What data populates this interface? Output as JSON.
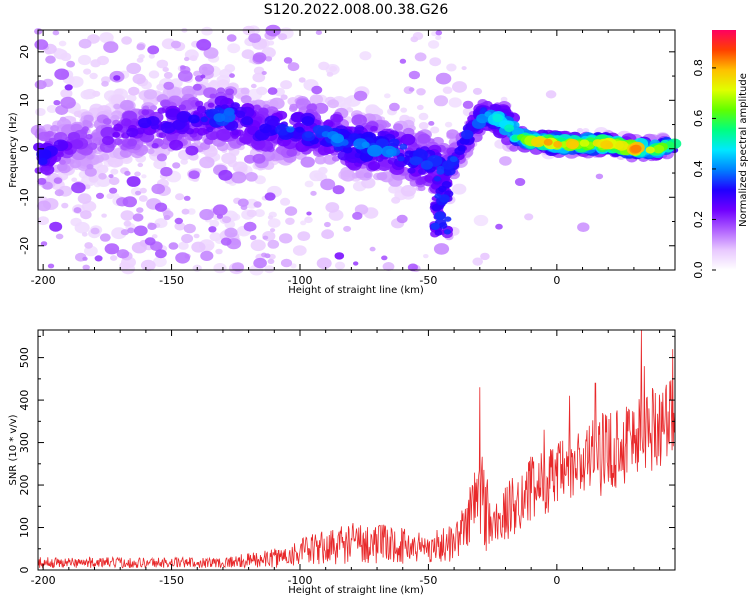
{
  "title": "S120.2022.008.00.38.G26",
  "chart_data": [
    {
      "type": "heatmap",
      "xlabel": "Height of straight line (km)",
      "ylabel": "Frequency (Hz)",
      "xlim": [
        -202,
        46
      ],
      "ylim": [
        -25,
        24.5
      ],
      "x_ticks": [
        -200,
        -150,
        -100,
        -50,
        0
      ],
      "y_ticks": [
        -20,
        -10,
        0,
        10,
        20
      ],
      "colorbar": {
        "label": "Normalized spectral amplitude",
        "range": [
          0,
          0.95
        ],
        "ticks": [
          "0.0",
          "0.2",
          "0.4",
          "0.6",
          "0.8"
        ],
        "tick_values": [
          0,
          0.2,
          0.4,
          0.6,
          0.8
        ],
        "colors": [
          "#ffffff",
          "#e8c8ff",
          "#b060ff",
          "#7000ff",
          "#2000ff",
          "#0080ff",
          "#00e8ff",
          "#00ff80",
          "#60ff00",
          "#e0ff00",
          "#ffc000",
          "#ff4000",
          "#ff0060"
        ]
      },
      "ridge": [
        {
          "x": -200,
          "y": -2,
          "a": 0.35
        },
        {
          "x": -190,
          "y": 1,
          "a": 0.25
        },
        {
          "x": -180,
          "y": 2,
          "a": 0.22
        },
        {
          "x": -160,
          "y": 5,
          "a": 0.3
        },
        {
          "x": -140,
          "y": 6,
          "a": 0.33
        },
        {
          "x": -128,
          "y": 7,
          "a": 0.4
        },
        {
          "x": -115,
          "y": 4,
          "a": 0.33
        },
        {
          "x": -100,
          "y": 4,
          "a": 0.38
        },
        {
          "x": -90,
          "y": 3,
          "a": 0.38
        },
        {
          "x": -80,
          "y": 1,
          "a": 0.42
        },
        {
          "x": -70,
          "y": 0,
          "a": 0.42
        },
        {
          "x": -60,
          "y": -1,
          "a": 0.4
        },
        {
          "x": -50,
          "y": -3,
          "a": 0.38
        },
        {
          "x": -43,
          "y": -5,
          "a": 0.38
        },
        {
          "x": -38,
          "y": 0,
          "a": 0.33
        },
        {
          "x": -33,
          "y": 4,
          "a": 0.42
        },
        {
          "x": -28,
          "y": 7,
          "a": 0.45
        },
        {
          "x": -23,
          "y": 6.5,
          "a": 0.52
        },
        {
          "x": -16,
          "y": 3,
          "a": 0.62
        },
        {
          "x": -10,
          "y": 1.5,
          "a": 0.72
        },
        {
          "x": -5,
          "y": 1.5,
          "a": 0.85
        },
        {
          "x": 0,
          "y": 1,
          "a": 0.82
        },
        {
          "x": 10,
          "y": 1,
          "a": 0.75
        },
        {
          "x": 20,
          "y": 1,
          "a": 0.85
        },
        {
          "x": 30,
          "y": 0,
          "a": 0.9
        },
        {
          "x": 40,
          "y": 0,
          "a": 0.75
        },
        {
          "x": 46,
          "y": 1,
          "a": 0.6
        }
      ]
    },
    {
      "type": "line",
      "xlabel": "Height of straight line (km)",
      "ylabel": "SNR (10 * v/v)",
      "xlim": [
        -202,
        46
      ],
      "ylim": [
        0,
        565
      ],
      "x_ticks": [
        -200,
        -150,
        -100,
        -50,
        0
      ],
      "y_ticks": [
        0,
        100,
        200,
        300,
        400,
        500
      ],
      "series_color": "#e8282a",
      "trend": [
        {
          "x": -202,
          "lo": 5,
          "hi": 30
        },
        {
          "x": -130,
          "lo": 5,
          "hi": 30
        },
        {
          "x": -120,
          "lo": 5,
          "hi": 40
        },
        {
          "x": -110,
          "lo": 5,
          "hi": 50
        },
        {
          "x": -100,
          "lo": 10,
          "hi": 75
        },
        {
          "x": -90,
          "lo": 10,
          "hi": 95
        },
        {
          "x": -80,
          "lo": 15,
          "hi": 115
        },
        {
          "x": -70,
          "lo": 15,
          "hi": 110
        },
        {
          "x": -60,
          "lo": 15,
          "hi": 100
        },
        {
          "x": -50,
          "lo": 15,
          "hi": 90
        },
        {
          "x": -40,
          "lo": 20,
          "hi": 110
        },
        {
          "x": -35,
          "lo": 50,
          "hi": 170
        },
        {
          "x": -30,
          "lo": 40,
          "hi": 330
        },
        {
          "x": -25,
          "lo": 40,
          "hi": 160
        },
        {
          "x": -20,
          "lo": 60,
          "hi": 200
        },
        {
          "x": -15,
          "lo": 90,
          "hi": 240
        },
        {
          "x": -10,
          "lo": 110,
          "hi": 270
        },
        {
          "x": 0,
          "lo": 140,
          "hi": 300
        },
        {
          "x": 10,
          "lo": 160,
          "hi": 340
        },
        {
          "x": 20,
          "lo": 180,
          "hi": 380
        },
        {
          "x": 30,
          "lo": 210,
          "hi": 420
        },
        {
          "x": 40,
          "lo": 240,
          "hi": 450
        },
        {
          "x": 46,
          "lo": 260,
          "hi": 470
        }
      ],
      "spikes": [
        {
          "x": -30,
          "y": 430
        },
        {
          "x": 33,
          "y": 565
        },
        {
          "x": 34,
          "y": 480
        },
        {
          "x": 45,
          "y": 520
        },
        {
          "x": 15,
          "y": 440
        },
        {
          "x": 5,
          "y": 410
        },
        {
          "x": -5,
          "y": 330
        }
      ]
    }
  ]
}
